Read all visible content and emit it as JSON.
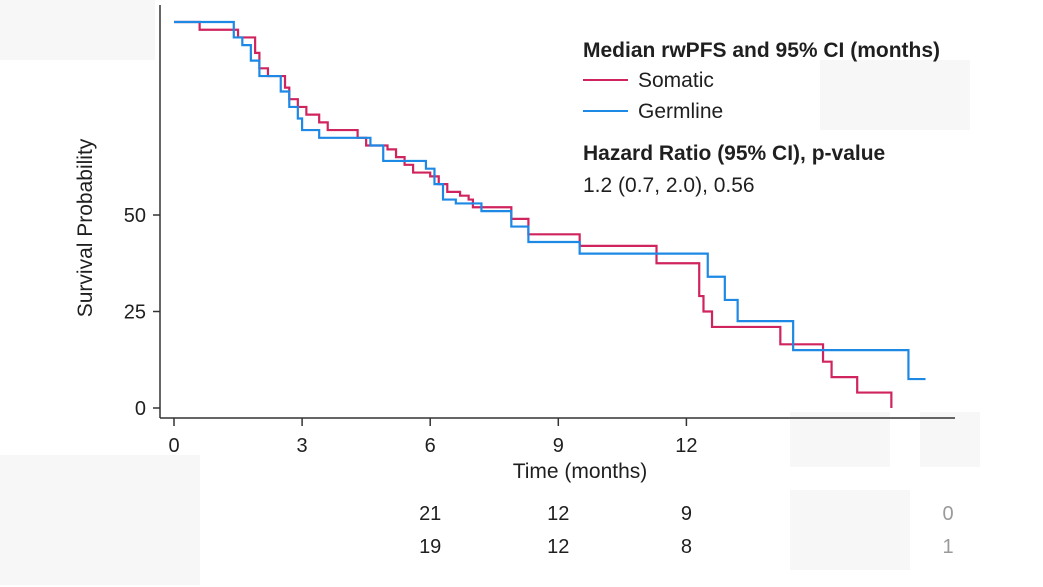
{
  "chart_data": {
    "type": "line",
    "subtype": "kaplan-meier",
    "xlabel": "Time (months)",
    "ylabel": "Survival Probability",
    "xlim": [
      0,
      18
    ],
    "ylim": [
      0,
      100
    ],
    "x_ticks": [
      0,
      3,
      6,
      9,
      12
    ],
    "y_ticks": [
      0,
      25,
      50
    ],
    "grid": false,
    "colors": {
      "Somatic": "#d0245e",
      "Germline": "#1e88e5"
    },
    "legend": {
      "title": "Median rwPFS and 95% CI (months)",
      "position": "top-right",
      "entries": [
        "Somatic",
        "Germline"
      ]
    },
    "hazard_ratio": {
      "title": "Hazard Ratio (95% CI), p-value",
      "value": "1.2 (0.7, 2.0), 0.56"
    },
    "series": [
      {
        "name": "Somatic",
        "x": [
          0,
          0.6,
          1.5,
          1.9,
          2.0,
          2.2,
          2.6,
          2.7,
          2.9,
          3.1,
          3.4,
          3.6,
          4.2,
          4.3,
          4.5,
          5.0,
          5.2,
          5.4,
          5.6,
          6.0,
          6.2,
          6.4,
          6.7,
          6.9,
          7.0,
          7.9,
          8.3,
          9.5,
          11.3,
          12.3,
          12.4,
          12.6,
          13.3,
          14.2,
          15.2,
          15.4,
          16.0,
          16.8
        ],
        "y": [
          100,
          98,
          96,
          92,
          88,
          86,
          83,
          80,
          78,
          76,
          74,
          72,
          72,
          70,
          68,
          67,
          65,
          63,
          61,
          60,
          58,
          56,
          55,
          54,
          52,
          49,
          45,
          42,
          37.5,
          29,
          25,
          21,
          21,
          16.5,
          12,
          8,
          4,
          0
        ]
      },
      {
        "name": "Germline",
        "x": [
          0,
          1.4,
          1.6,
          1.8,
          2.0,
          2.5,
          2.7,
          2.9,
          3.0,
          3.4,
          4.4,
          4.6,
          4.9,
          5.3,
          5.9,
          6.1,
          6.3,
          6.6,
          7.0,
          7.2,
          7.9,
          8.3,
          9.5,
          12.1,
          12.5,
          12.9,
          13.2,
          14.5,
          17.2,
          17.6
        ],
        "y": [
          100,
          96,
          94,
          90,
          86,
          82,
          78,
          75,
          72,
          70,
          70,
          68,
          64,
          64,
          62,
          58,
          54,
          53,
          53,
          51,
          47,
          43,
          40,
          40,
          34,
          28,
          22.5,
          15,
          7.5,
          7.5
        ]
      }
    ],
    "risk_table": {
      "rows": [
        [
          "21",
          "12",
          "9",
          "0"
        ],
        [
          "19",
          "12",
          "8",
          "1"
        ]
      ]
    }
  }
}
